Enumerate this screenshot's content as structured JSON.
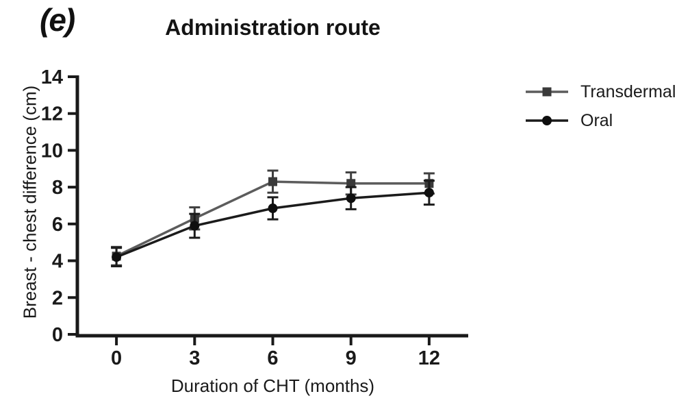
{
  "figure": {
    "panel_label": "(e)"
  },
  "chart_data": {
    "type": "line",
    "title": "Administration route",
    "xlabel": "Duration of CHT (months)",
    "ylabel": "Breast - chest difference (cm)",
    "x": [
      0,
      3,
      6,
      9,
      12
    ],
    "xticks": [
      "0",
      "3",
      "6",
      "9",
      "12"
    ],
    "yticks": [
      "0",
      "2",
      "4",
      "6",
      "8",
      "10",
      "12",
      "14"
    ],
    "ytick_values": [
      0,
      2,
      4,
      6,
      8,
      10,
      12,
      14
    ],
    "xlim": [
      -1.5,
      13.5
    ],
    "ylim": [
      0,
      14
    ],
    "grid": false,
    "error_bars": true,
    "legend_position": "right",
    "axis_color": "#1a1a1a",
    "series": [
      {
        "name": "Transdermal",
        "marker": "square",
        "line_color": "#5c5c5c",
        "marker_color": "#3a3a3a",
        "error_color": "#3f3f3f",
        "values": [
          4.25,
          6.3,
          8.3,
          8.2,
          8.2
        ],
        "errors": [
          0.5,
          0.6,
          0.6,
          0.6,
          0.55
        ]
      },
      {
        "name": "Oral",
        "marker": "circle",
        "line_color": "#1b1b1b",
        "marker_color": "#0f0f0f",
        "error_color": "#1b1b1b",
        "values": [
          4.2,
          5.9,
          6.85,
          7.4,
          7.7
        ],
        "errors": [
          0.5,
          0.65,
          0.6,
          0.6,
          0.65
        ]
      }
    ]
  }
}
